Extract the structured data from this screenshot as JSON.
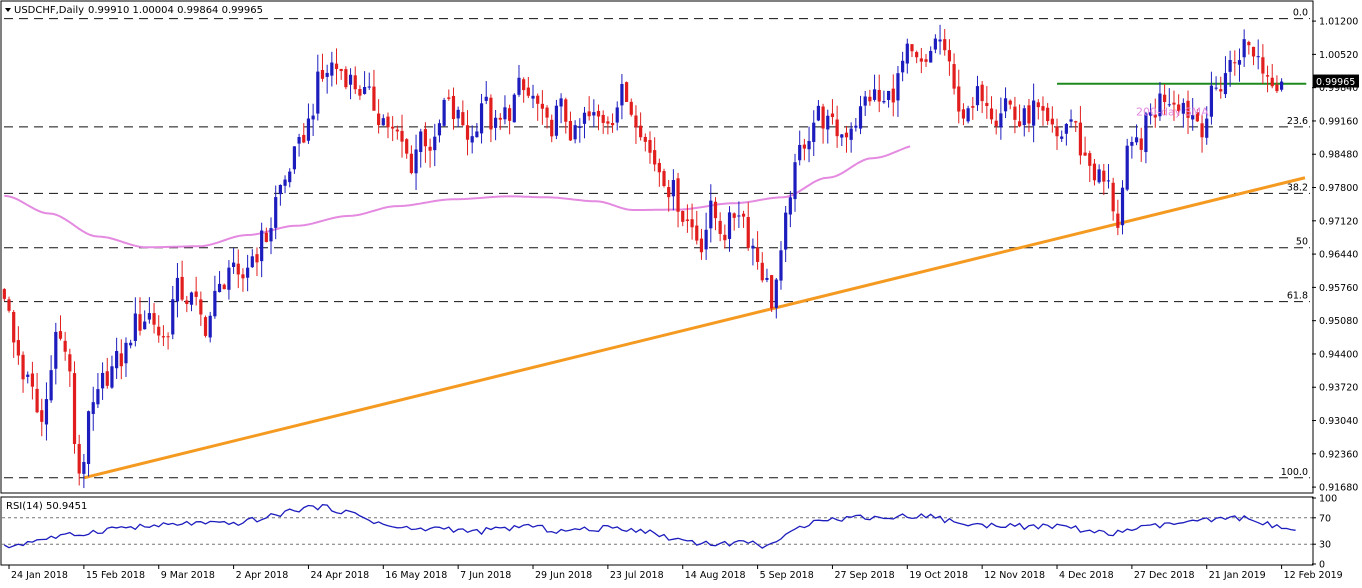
{
  "header": {
    "symbol_label": "USDCHF,Daily",
    "ohlc_label": "0.99910 1.00004 0.99864 0.99965"
  },
  "colors": {
    "bull": "#1d1dbe",
    "bear": "#e11d1d",
    "sma": "#e48ae0",
    "trendline": "#f59a21",
    "resistance": "#1e8a1e",
    "fib": "#111111",
    "rsi_line": "#1d1dbe",
    "price_tag_bg": "#000000",
    "price_tag_fg": "#ffffff"
  },
  "chart_data": [
    {
      "type": "candlestick",
      "symbol": "USDCHF",
      "timeframe": "Daily",
      "y_ticks": [
        "1.01200",
        "1.00520",
        "0.99840",
        "0.99160",
        "0.98480",
        "0.97800",
        "0.97120",
        "0.96440",
        "0.95760",
        "0.95080",
        "0.94400",
        "0.93720",
        "0.93040",
        "0.92360",
        "0.91680"
      ],
      "ylim": [
        0.9158,
        1.0159
      ],
      "x_ticks": [
        "24 Jan 2018",
        "15 Feb 2018",
        "9 Mar 2018",
        "2 Apr 2018",
        "24 Apr 2018",
        "16 May 2018",
        "7 Jun 2018",
        "29 Jun 2018",
        "23 Jul 2018",
        "14 Aug 2018",
        "5 Sep 2018",
        "27 Sep 2018",
        "19 Oct 2018",
        "12 Nov 2018",
        "4 Dec 2018",
        "27 Dec 2018",
        "21 Jan 2019",
        "12 Feb 2019"
      ],
      "fib_levels": [
        {
          "label": "0.0",
          "value": 1.0125
        },
        {
          "label": "23.6",
          "value": 0.9904
        },
        {
          "label": "38.2",
          "value": 0.9768
        },
        {
          "label": "50",
          "value": 0.9657
        },
        {
          "label": "61.8",
          "value": 0.9547
        },
        {
          "label": "100.0",
          "value": 0.9187
        }
      ],
      "resistance": {
        "start": "4 Dec 2018",
        "end": "22 Feb 2019",
        "value": 0.9992
      },
      "trendline": {
        "points": [
          [
            "15 Feb 2018",
            0.9187
          ],
          [
            "28 Feb 2019",
            0.98
          ]
        ]
      },
      "sma_label": "200-day SMA",
      "sma200": [
        [
          0,
          0.9763
        ],
        [
          12,
          0.9727
        ],
        [
          25,
          0.968
        ],
        [
          38,
          0.9658
        ],
        [
          52,
          0.966
        ],
        [
          65,
          0.9683
        ],
        [
          78,
          0.9702
        ],
        [
          92,
          0.9722
        ],
        [
          105,
          0.9742
        ],
        [
          120,
          0.9756
        ],
        [
          135,
          0.9762
        ],
        [
          145,
          0.976
        ],
        [
          158,
          0.9752
        ],
        [
          168,
          0.9734
        ],
        [
          180,
          0.9735
        ],
        [
          195,
          0.9748
        ],
        [
          208,
          0.976
        ],
        [
          220,
          0.98
        ],
        [
          232,
          0.984
        ],
        [
          245,
          0.9868
        ],
        [
          258,
          0.9893
        ],
        [
          270,
          0.9896
        ],
        [
          282,
          0.9905
        ],
        [
          292,
          0.9912
        ],
        [
          300,
          0.9915
        ],
        [
          310,
          0.9918
        ],
        [
          318,
          0.9918
        ]
      ],
      "last_price": "0.99965",
      "last_value": 0.99965,
      "anchors": [
        [
          0,
          0.957
        ],
        [
          2,
          0.946
        ],
        [
          5,
          0.938
        ],
        [
          8,
          0.93
        ],
        [
          11,
          0.948
        ],
        [
          13,
          0.945
        ],
        [
          16,
          0.92
        ],
        [
          19,
          0.933
        ],
        [
          22,
          0.94
        ],
        [
          25,
          0.943
        ],
        [
          28,
          0.95
        ],
        [
          31,
          0.952
        ],
        [
          34,
          0.947
        ],
        [
          37,
          0.957
        ],
        [
          40,
          0.955
        ],
        [
          43,
          0.95
        ],
        [
          46,
          0.957
        ],
        [
          48,
          0.962
        ],
        [
          50,
          0.958
        ],
        [
          53,
          0.964
        ],
        [
          56,
          0.968
        ],
        [
          59,
          0.978
        ],
        [
          62,
          0.984
        ],
        [
          65,
          0.991
        ],
        [
          67,
          0.999
        ],
        [
          70,
          1.003
        ],
        [
          72,
          1.002
        ],
        [
          75,
          0.999
        ],
        [
          78,
          0.996
        ],
        [
          81,
          0.992
        ],
        [
          84,
          0.988
        ],
        [
          87,
          0.983
        ],
        [
          89,
          0.989
        ],
        [
          92,
          0.986
        ],
        [
          94,
          0.995
        ],
        [
          97,
          0.992
        ],
        [
          100,
          0.988
        ],
        [
          102,
          0.996
        ],
        [
          105,
          0.99
        ],
        [
          108,
          0.994
        ],
        [
          110,
          0.998
        ],
        [
          113,
          0.996
        ],
        [
          116,
          0.99
        ],
        [
          119,
          0.994
        ],
        [
          122,
          0.988
        ],
        [
          124,
          0.992
        ],
        [
          127,
          0.992
        ],
        [
          130,
          0.993
        ],
        [
          132,
          0.997
        ],
        [
          135,
          0.993
        ],
        [
          138,
          0.985
        ],
        [
          140,
          0.982
        ],
        [
          143,
          0.977
        ],
        [
          146,
          0.971
        ],
        [
          149,
          0.967
        ],
        [
          151,
          0.973
        ],
        [
          154,
          0.969
        ],
        [
          157,
          0.974
        ],
        [
          160,
          0.966
        ],
        [
          162,
          0.961
        ],
        [
          164,
          0.955
        ],
        [
          166,
          0.963
        ],
        [
          168,
          0.978
        ],
        [
          171,
          0.988
        ],
        [
          174,
          0.993
        ],
        [
          177,
          0.99
        ],
        [
          179,
          0.989
        ],
        [
          182,
          0.992
        ],
        [
          185,
          0.997
        ],
        [
          188,
          0.995
        ],
        [
          190,
          0.998
        ],
        [
          193,
          1.005
        ],
        [
          195,
          1.003
        ],
        [
          197,
          1.002
        ],
        [
          199,
          1.009
        ],
        [
          201,
          1.006
        ],
        [
          203,
          0.997
        ],
        [
          206,
          0.992
        ],
        [
          209,
          0.998
        ],
        [
          212,
          0.993
        ],
        [
          214,
          0.996
        ],
        [
          217,
          0.991
        ],
        [
          220,
          0.994
        ],
        [
          223,
          0.99
        ],
        [
          225,
          0.988
        ],
        [
          228,
          0.992
        ],
        [
          231,
          0.984
        ],
        [
          234,
          0.98
        ],
        [
          236,
          0.978
        ],
        [
          238,
          0.971
        ],
        [
          240,
          0.984
        ],
        [
          243,
          0.988
        ],
        [
          245,
          0.993
        ],
        [
          248,
          0.997
        ],
        [
          251,
          0.996
        ],
        [
          254,
          0.993
        ],
        [
          256,
          0.991
        ],
        [
          259,
          0.998
        ],
        [
          262,
          1.003
        ],
        [
          265,
          1.007
        ],
        [
          267,
          1.006
        ],
        [
          270,
          1.001
        ],
        [
          273,
          0.9997
        ]
      ]
    },
    {
      "type": "line",
      "indicator_label": "RSI(14) 50.9451",
      "y_ticks": [
        "100",
        "70",
        "30",
        "0"
      ],
      "ylim": [
        0,
        100
      ],
      "levels": [
        70,
        30
      ],
      "anchors": [
        [
          0,
          25
        ],
        [
          8,
          38
        ],
        [
          16,
          45
        ],
        [
          24,
          55
        ],
        [
          32,
          57
        ],
        [
          40,
          62
        ],
        [
          48,
          60
        ],
        [
          56,
          70
        ],
        [
          62,
          82
        ],
        [
          66,
          87
        ],
        [
          70,
          84
        ],
        [
          76,
          73
        ],
        [
          82,
          57
        ],
        [
          88,
          52
        ],
        [
          94,
          55
        ],
        [
          100,
          48
        ],
        [
          106,
          53
        ],
        [
          112,
          58
        ],
        [
          118,
          50
        ],
        [
          124,
          52
        ],
        [
          130,
          55
        ],
        [
          136,
          52
        ],
        [
          142,
          40
        ],
        [
          148,
          33
        ],
        [
          154,
          30
        ],
        [
          158,
          35
        ],
        [
          162,
          28
        ],
        [
          166,
          36
        ],
        [
          170,
          55
        ],
        [
          174,
          70
        ],
        [
          178,
          67
        ],
        [
          182,
          72
        ],
        [
          188,
          70
        ],
        [
          194,
          73
        ],
        [
          198,
          73
        ],
        [
          202,
          65
        ],
        [
          208,
          58
        ],
        [
          214,
          60
        ],
        [
          220,
          55
        ],
        [
          226,
          58
        ],
        [
          232,
          50
        ],
        [
          236,
          44
        ],
        [
          240,
          52
        ],
        [
          246,
          57
        ],
        [
          252,
          63
        ],
        [
          258,
          66
        ],
        [
          264,
          70
        ],
        [
          268,
          66
        ],
        [
          272,
          55
        ],
        [
          276,
          51
        ]
      ]
    }
  ]
}
